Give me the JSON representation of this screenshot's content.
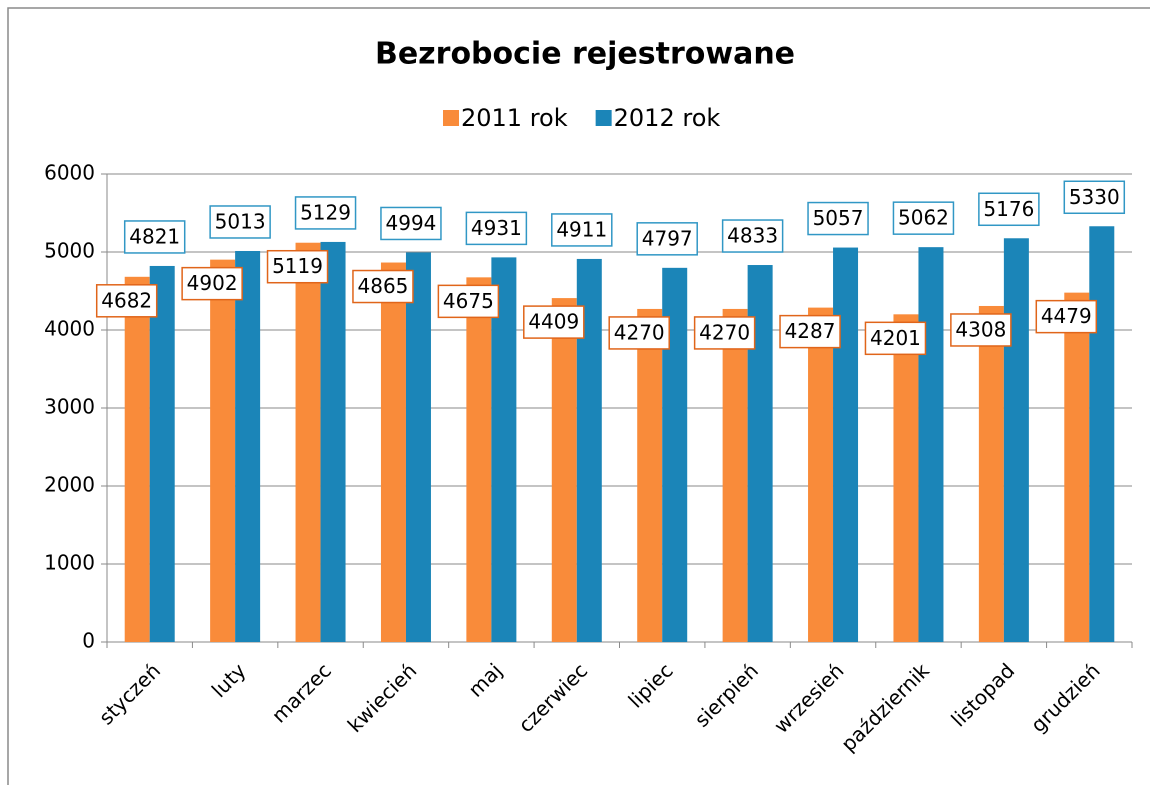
{
  "chart_data": {
    "type": "bar",
    "title": "Bezrobocie rejestrowane",
    "categories": [
      "styczeń",
      "luty",
      "marzec",
      "kwiecień",
      "maj",
      "czerwiec",
      "lipiec",
      "sierpień",
      "wrzesień",
      "październik",
      "listopad",
      "grudzień"
    ],
    "series": [
      {
        "name": "2011 rok",
        "color": "#f98b3a",
        "label_color": "#e0651a",
        "values": [
          4682,
          4902,
          5119,
          4865,
          4675,
          4409,
          4270,
          4270,
          4287,
          4201,
          4308,
          4479
        ]
      },
      {
        "name": "2012 rok",
        "color": "#1b85b8",
        "label_color": "#3197c5",
        "values": [
          4821,
          5013,
          5129,
          4994,
          4931,
          4911,
          4797,
          4833,
          5057,
          5062,
          5176,
          5330
        ]
      }
    ],
    "ylim": [
      0,
      6000
    ],
    "yticks": [
      0,
      1000,
      2000,
      3000,
      4000,
      5000,
      6000
    ],
    "grid": true,
    "legend": "top"
  }
}
